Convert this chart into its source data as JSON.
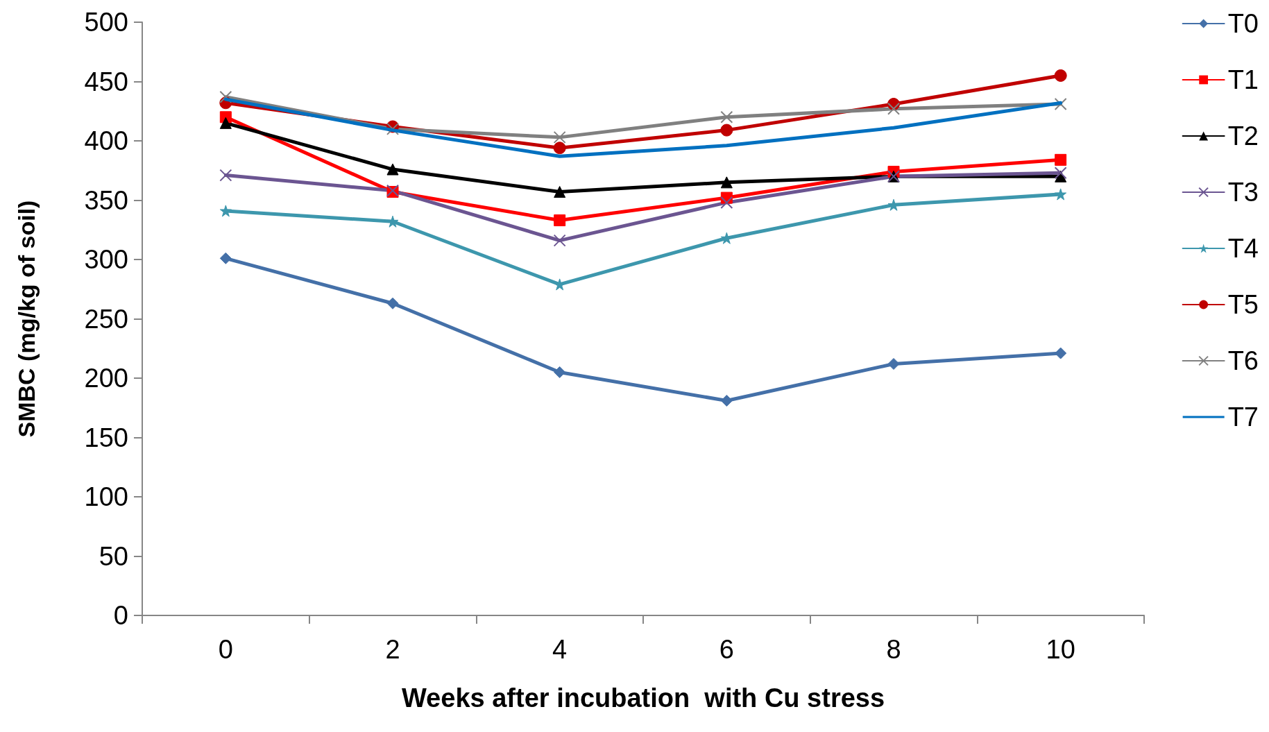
{
  "chart_data": {
    "type": "line",
    "xlabel": "Weeks after incubation  with Cu stress",
    "ylabel": "SMBC (mg/kg of soil)",
    "categories": [
      "0",
      "2",
      "4",
      "6",
      "8",
      "10"
    ],
    "ylim": [
      0,
      500
    ],
    "yticks": [
      0,
      50,
      100,
      150,
      200,
      250,
      300,
      350,
      400,
      450,
      500
    ],
    "grid": false,
    "legend": "right",
    "line_style": "solid",
    "series": [
      {
        "name": "T0",
        "color": "#4470a8",
        "marker": "diamond",
        "values": [
          301,
          263,
          205,
          181,
          212,
          221
        ]
      },
      {
        "name": "T1",
        "color": "#ff0000",
        "marker": "square",
        "values": [
          420,
          357,
          333,
          352,
          374,
          384
        ]
      },
      {
        "name": "T2",
        "color": "#000000",
        "marker": "triangle",
        "values": [
          415,
          376,
          357,
          365,
          370,
          370
        ]
      },
      {
        "name": "T3",
        "color": "#6b5591",
        "marker": "cross",
        "values": [
          371,
          358,
          316,
          348,
          370,
          373
        ]
      },
      {
        "name": "T4",
        "color": "#3d97ad",
        "marker": "star",
        "values": [
          341,
          332,
          279,
          318,
          346,
          355
        ]
      },
      {
        "name": "T5",
        "color": "#c00000",
        "marker": "circle",
        "values": [
          432,
          412,
          394,
          409,
          431,
          455
        ]
      },
      {
        "name": "T6",
        "color": "#808080",
        "marker": "cross",
        "values": [
          437,
          410,
          403,
          420,
          427,
          431
        ]
      },
      {
        "name": "T7",
        "color": "#0070c0",
        "marker": "none",
        "values": [
          435,
          409,
          387,
          396,
          411,
          432
        ]
      }
    ]
  }
}
